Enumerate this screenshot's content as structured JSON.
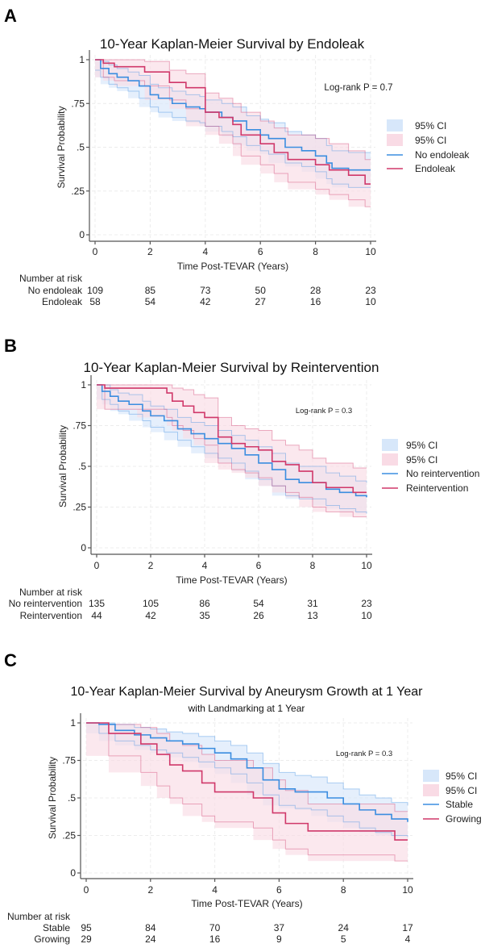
{
  "colors": {
    "blue_line": "#3b8de0",
    "blue_ci": "#d7e7fa",
    "red_line": "#d0386a",
    "red_ci": "#f9dbe5"
  },
  "chart_data": [
    {
      "panel_label": "A",
      "type": "line",
      "title": "10-Year Kaplan-Meier Survival by Endoleak",
      "subtitle": "",
      "xlabel": "Time Post-TEVAR (Years)",
      "ylabel": "Survival Probability",
      "xlim": [
        0,
        10
      ],
      "ylim": [
        0,
        1
      ],
      "xticks": [
        "0",
        "2",
        "4",
        "6",
        "8",
        "10"
      ],
      "yticks": [
        "0",
        ".25",
        ".5",
        ".75",
        "1"
      ],
      "annotation": "Log-rank P = 0.7",
      "legend": [
        "95% CI",
        "95% CI",
        "No endoleak",
        "Endoleak"
      ],
      "legend_position": "right",
      "series": [
        {
          "name": "No endoleak",
          "color": "blue",
          "t": [
            0,
            0.2,
            0.5,
            0.8,
            1.2,
            1.6,
            2.0,
            2.3,
            2.8,
            3.3,
            3.8,
            4.0,
            4.6,
            5.0,
            5.5,
            6.0,
            6.3,
            6.9,
            7.5,
            8.0,
            8.4,
            8.6,
            9.2,
            10
          ],
          "s": [
            1,
            0.95,
            0.92,
            0.9,
            0.88,
            0.85,
            0.8,
            0.78,
            0.75,
            0.73,
            0.72,
            0.7,
            0.67,
            0.65,
            0.6,
            0.57,
            0.55,
            0.5,
            0.48,
            0.45,
            0.41,
            0.38,
            0.37,
            0.37
          ],
          "lo": [
            0.94,
            0.9,
            0.86,
            0.84,
            0.82,
            0.78,
            0.73,
            0.7,
            0.67,
            0.65,
            0.64,
            0.62,
            0.59,
            0.56,
            0.51,
            0.48,
            0.46,
            0.41,
            0.39,
            0.36,
            0.32,
            0.29,
            0.27,
            0.27
          ],
          "hi": [
            1,
            0.99,
            0.97,
            0.95,
            0.93,
            0.91,
            0.86,
            0.84,
            0.82,
            0.8,
            0.79,
            0.77,
            0.75,
            0.73,
            0.68,
            0.66,
            0.64,
            0.59,
            0.57,
            0.55,
            0.51,
            0.48,
            0.47,
            0.47
          ]
        },
        {
          "name": "Endoleak",
          "color": "red",
          "t": [
            0,
            0.3,
            0.7,
            1.8,
            2.7,
            3.3,
            4.0,
            4.5,
            5.0,
            5.3,
            6.0,
            6.5,
            7.0,
            8.0,
            8.5,
            9.2,
            9.8,
            10
          ],
          "s": [
            1,
            0.98,
            0.96,
            0.93,
            0.87,
            0.84,
            0.7,
            0.67,
            0.63,
            0.57,
            0.52,
            0.47,
            0.43,
            0.4,
            0.37,
            0.34,
            0.29,
            0.29
          ],
          "lo": [
            1,
            0.9,
            0.88,
            0.85,
            0.77,
            0.72,
            0.62,
            0.57,
            0.52,
            0.45,
            0.4,
            0.35,
            0.3,
            0.26,
            0.23,
            0.2,
            0.16,
            0.16
          ],
          "hi": [
            1,
            1,
            1,
            0.99,
            0.94,
            0.92,
            0.81,
            0.78,
            0.75,
            0.7,
            0.65,
            0.61,
            0.57,
            0.55,
            0.52,
            0.48,
            0.43,
            0.43
          ]
        }
      ],
      "risk_table": {
        "title": "Number at risk",
        "rows": [
          {
            "label": "No endoleak",
            "values": [
              "109",
              "85",
              "73",
              "50",
              "28",
              "23"
            ]
          },
          {
            "label": "Endoleak",
            "values": [
              "58",
              "54",
              "42",
              "27",
              "16",
              "10"
            ]
          }
        ]
      }
    },
    {
      "panel_label": "B",
      "type": "line",
      "title": "10-Year Kaplan-Meier Survival by Reintervention",
      "subtitle": "",
      "xlabel": "Time Post-TEVAR (Years)",
      "ylabel": "Survival Probability",
      "xlim": [
        0,
        10
      ],
      "ylim": [
        0,
        1
      ],
      "xticks": [
        "0",
        "2",
        "4",
        "6",
        "8",
        "10"
      ],
      "yticks": [
        "0",
        ".25",
        ".5",
        ".75",
        "1"
      ],
      "annotation": "Log-rank P = 0.3",
      "legend": [
        "95% CI",
        "95% CI",
        "No reintervention",
        "Reintervention"
      ],
      "legend_position": "right",
      "series": [
        {
          "name": "No reintervention",
          "color": "blue",
          "t": [
            0,
            0.2,
            0.5,
            0.8,
            1.2,
            1.7,
            2.0,
            2.5,
            3.0,
            3.5,
            4.0,
            4.5,
            5.0,
            5.5,
            6.0,
            6.5,
            7.0,
            7.5,
            8.0,
            8.5,
            9.0,
            9.6,
            10
          ],
          "s": [
            1,
            0.96,
            0.93,
            0.9,
            0.88,
            0.84,
            0.81,
            0.78,
            0.73,
            0.7,
            0.67,
            0.64,
            0.61,
            0.57,
            0.52,
            0.48,
            0.42,
            0.4,
            0.4,
            0.36,
            0.34,
            0.32,
            0.31
          ],
          "lo": [
            1,
            0.91,
            0.88,
            0.84,
            0.82,
            0.78,
            0.74,
            0.71,
            0.66,
            0.62,
            0.58,
            0.55,
            0.52,
            0.47,
            0.42,
            0.38,
            0.32,
            0.3,
            0.3,
            0.26,
            0.24,
            0.22,
            0.21
          ],
          "hi": [
            1,
            1,
            0.97,
            0.95,
            0.94,
            0.9,
            0.87,
            0.85,
            0.8,
            0.77,
            0.75,
            0.72,
            0.69,
            0.66,
            0.62,
            0.58,
            0.52,
            0.5,
            0.5,
            0.46,
            0.44,
            0.41,
            0.4
          ]
        },
        {
          "name": "Reintervention",
          "color": "red",
          "t": [
            0,
            0.3,
            1.5,
            2.6,
            2.8,
            3.2,
            3.6,
            4.0,
            4.5,
            5.0,
            5.5,
            6.0,
            6.5,
            7.0,
            7.5,
            8.0,
            8.5,
            9.0,
            9.5,
            10
          ],
          "s": [
            1,
            0.98,
            0.98,
            0.95,
            0.9,
            0.87,
            0.83,
            0.8,
            0.68,
            0.64,
            0.62,
            0.6,
            0.53,
            0.51,
            0.47,
            0.4,
            0.37,
            0.37,
            0.34,
            0.34
          ],
          "lo": [
            1,
            0.85,
            0.85,
            0.8,
            0.75,
            0.72,
            0.67,
            0.63,
            0.52,
            0.48,
            0.46,
            0.43,
            0.38,
            0.34,
            0.31,
            0.25,
            0.22,
            0.22,
            0.19,
            0.19
          ],
          "hi": [
            1,
            1,
            1,
            1,
            0.98,
            0.97,
            0.94,
            0.92,
            0.8,
            0.75,
            0.73,
            0.72,
            0.66,
            0.63,
            0.6,
            0.55,
            0.52,
            0.52,
            0.49,
            0.49
          ]
        }
      ],
      "risk_table": {
        "title": "Number at risk",
        "rows": [
          {
            "label": "No reintervention",
            "values": [
              "135",
              "105",
              "86",
              "54",
              "31",
              "23"
            ]
          },
          {
            "label": "Reintervention",
            "values": [
              "44",
              "42",
              "35",
              "26",
              "13",
              "10"
            ]
          }
        ]
      }
    },
    {
      "panel_label": "C",
      "type": "line",
      "title": "10-Year Kaplan-Meier Survival by Aneurysm Growth at 1 Year",
      "subtitle": "with Landmarking at 1 Year",
      "xlabel": "Time Post-TEVAR (Years)",
      "ylabel": "Survival Probability",
      "xlim": [
        0,
        10
      ],
      "ylim": [
        0,
        1
      ],
      "xticks": [
        "0",
        "2",
        "4",
        "6",
        "8",
        "10"
      ],
      "yticks": [
        "0",
        ".25",
        ".5",
        ".75",
        "1"
      ],
      "annotation": "Log-rank P = 0.3",
      "legend": [
        "95% CI",
        "95% CI",
        "Stable",
        "Growing"
      ],
      "legend_position": "right",
      "series": [
        {
          "name": "Stable",
          "color": "blue",
          "t": [
            0,
            0.4,
            0.9,
            1.5,
            2.0,
            2.5,
            3.0,
            3.5,
            4.0,
            4.5,
            5.0,
            5.5,
            6.0,
            6.5,
            7.0,
            7.5,
            8.0,
            8.5,
            9.0,
            9.5,
            10
          ],
          "s": [
            1,
            0.99,
            0.95,
            0.92,
            0.9,
            0.88,
            0.86,
            0.83,
            0.8,
            0.76,
            0.7,
            0.62,
            0.56,
            0.54,
            0.54,
            0.5,
            0.46,
            0.42,
            0.39,
            0.36,
            0.34
          ],
          "lo": [
            1,
            0.93,
            0.88,
            0.85,
            0.82,
            0.8,
            0.77,
            0.74,
            0.7,
            0.66,
            0.6,
            0.52,
            0.45,
            0.43,
            0.42,
            0.38,
            0.34,
            0.3,
            0.27,
            0.25,
            0.24
          ],
          "hi": [
            1,
            1,
            0.99,
            0.97,
            0.96,
            0.94,
            0.93,
            0.91,
            0.88,
            0.85,
            0.8,
            0.73,
            0.67,
            0.65,
            0.64,
            0.6,
            0.56,
            0.52,
            0.5,
            0.47,
            0.45
          ]
        },
        {
          "name": "Growing",
          "color": "red",
          "t": [
            0,
            0.7,
            1.7,
            2.2,
            2.6,
            3.0,
            3.6,
            4.0,
            5.2,
            5.8,
            6.2,
            6.9,
            9.6,
            10
          ],
          "s": [
            1,
            0.93,
            0.86,
            0.79,
            0.72,
            0.68,
            0.6,
            0.54,
            0.5,
            0.4,
            0.33,
            0.28,
            0.22,
            0.22
          ],
          "lo": [
            1,
            0.78,
            0.67,
            0.58,
            0.5,
            0.46,
            0.38,
            0.34,
            0.3,
            0.22,
            0.16,
            0.12,
            0.08,
            0.08
          ],
          "hi": [
            1,
            0.99,
            0.97,
            0.93,
            0.88,
            0.85,
            0.79,
            0.75,
            0.7,
            0.62,
            0.55,
            0.46,
            0.41,
            0.41
          ]
        }
      ],
      "risk_table": {
        "title": "Number at risk",
        "rows": [
          {
            "label": "Stable",
            "values": [
              "95",
              "84",
              "70",
              "37",
              "24",
              "17"
            ]
          },
          {
            "label": "Growing",
            "values": [
              "29",
              "24",
              "16",
              "9",
              "5",
              "4"
            ]
          }
        ]
      }
    }
  ]
}
